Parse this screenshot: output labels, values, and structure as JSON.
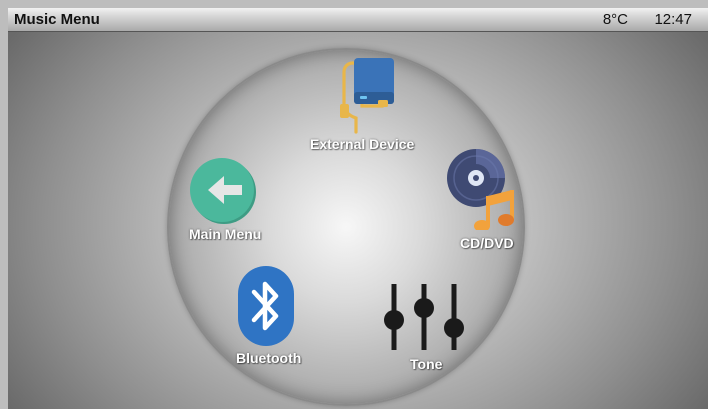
{
  "header": {
    "title": "Music Menu",
    "temperature": "8°C",
    "time": "12:47"
  },
  "menu": {
    "external_device": {
      "label": "External Device",
      "icon": "external-drive-icon"
    },
    "cd_dvd": {
      "label": "CD/DVD",
      "icon": "cd-music-icon"
    },
    "main_menu": {
      "label": "Main Menu",
      "icon": "back-arrow-icon"
    },
    "bluetooth": {
      "label": "Bluetooth",
      "icon": "bluetooth-icon"
    },
    "tone": {
      "label": "Tone",
      "icon": "equalizer-sliders-icon"
    }
  },
  "colors": {
    "main_menu_circle": "#4bb89c",
    "bluetooth_badge": "#2f74c4",
    "drive_body": "#3a73b8",
    "cable": "#e8b64a",
    "disc": "#3f4a73",
    "music_note": "#f2a23c",
    "slider": "#1a1a1a"
  }
}
